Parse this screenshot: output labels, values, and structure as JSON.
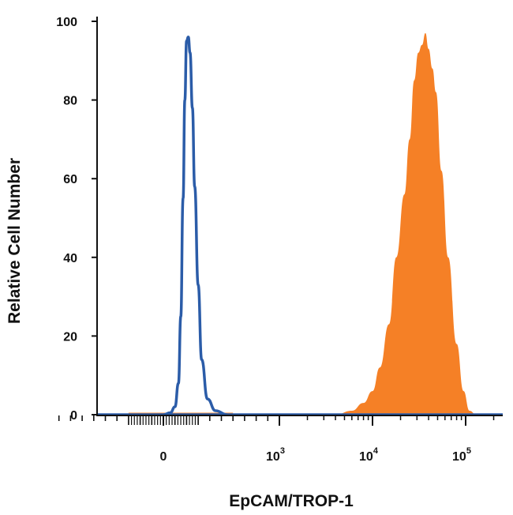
{
  "chart_data": {
    "type": "area",
    "xlabel": "EpCAM/TROP-1",
    "ylabel": "Relative Cell Number",
    "x_scale": "biexponential",
    "ylim": [
      0,
      100
    ],
    "y_ticks": [
      {
        "value": 0,
        "label": "0"
      },
      {
        "value": 20,
        "label": "20"
      },
      {
        "value": 40,
        "label": "40"
      },
      {
        "value": 60,
        "label": "60"
      },
      {
        "value": 80,
        "label": "80"
      },
      {
        "value": 100,
        "label": "100"
      }
    ],
    "x_ticks": [
      {
        "value": 0,
        "base": "0",
        "exp": ""
      },
      {
        "value": 1000,
        "base": "10",
        "exp": "3"
      },
      {
        "value": 10000,
        "base": "10",
        "exp": "4"
      },
      {
        "value": 100000,
        "base": "10",
        "exp": "5"
      }
    ],
    "grid": false,
    "series": [
      {
        "style": "outline",
        "color": "#2b5ca8",
        "x": [
          0,
          60,
          100,
          130,
          150,
          170,
          185,
          200,
          215,
          230,
          250,
          270,
          300,
          330,
          380,
          450,
          550
        ],
        "y": [
          0,
          0.5,
          2,
          8,
          25,
          55,
          80,
          95,
          96,
          92,
          78,
          58,
          33,
          14,
          4,
          1,
          0
        ]
      },
      {
        "style": "filled",
        "color": "#f58026",
        "x": [
          4000,
          6000,
          8000,
          10000,
          12000,
          15000,
          18000,
          22000,
          25000,
          28000,
          31000,
          34000,
          37000,
          40000,
          44000,
          48000,
          55000,
          65000,
          80000,
          95000,
          110000,
          130000
        ],
        "y": [
          0,
          1,
          3,
          6,
          12,
          23,
          40,
          56,
          70,
          85,
          92,
          94,
          97,
          93,
          88,
          82,
          62,
          40,
          18,
          6,
          1,
          0
        ]
      }
    ]
  }
}
